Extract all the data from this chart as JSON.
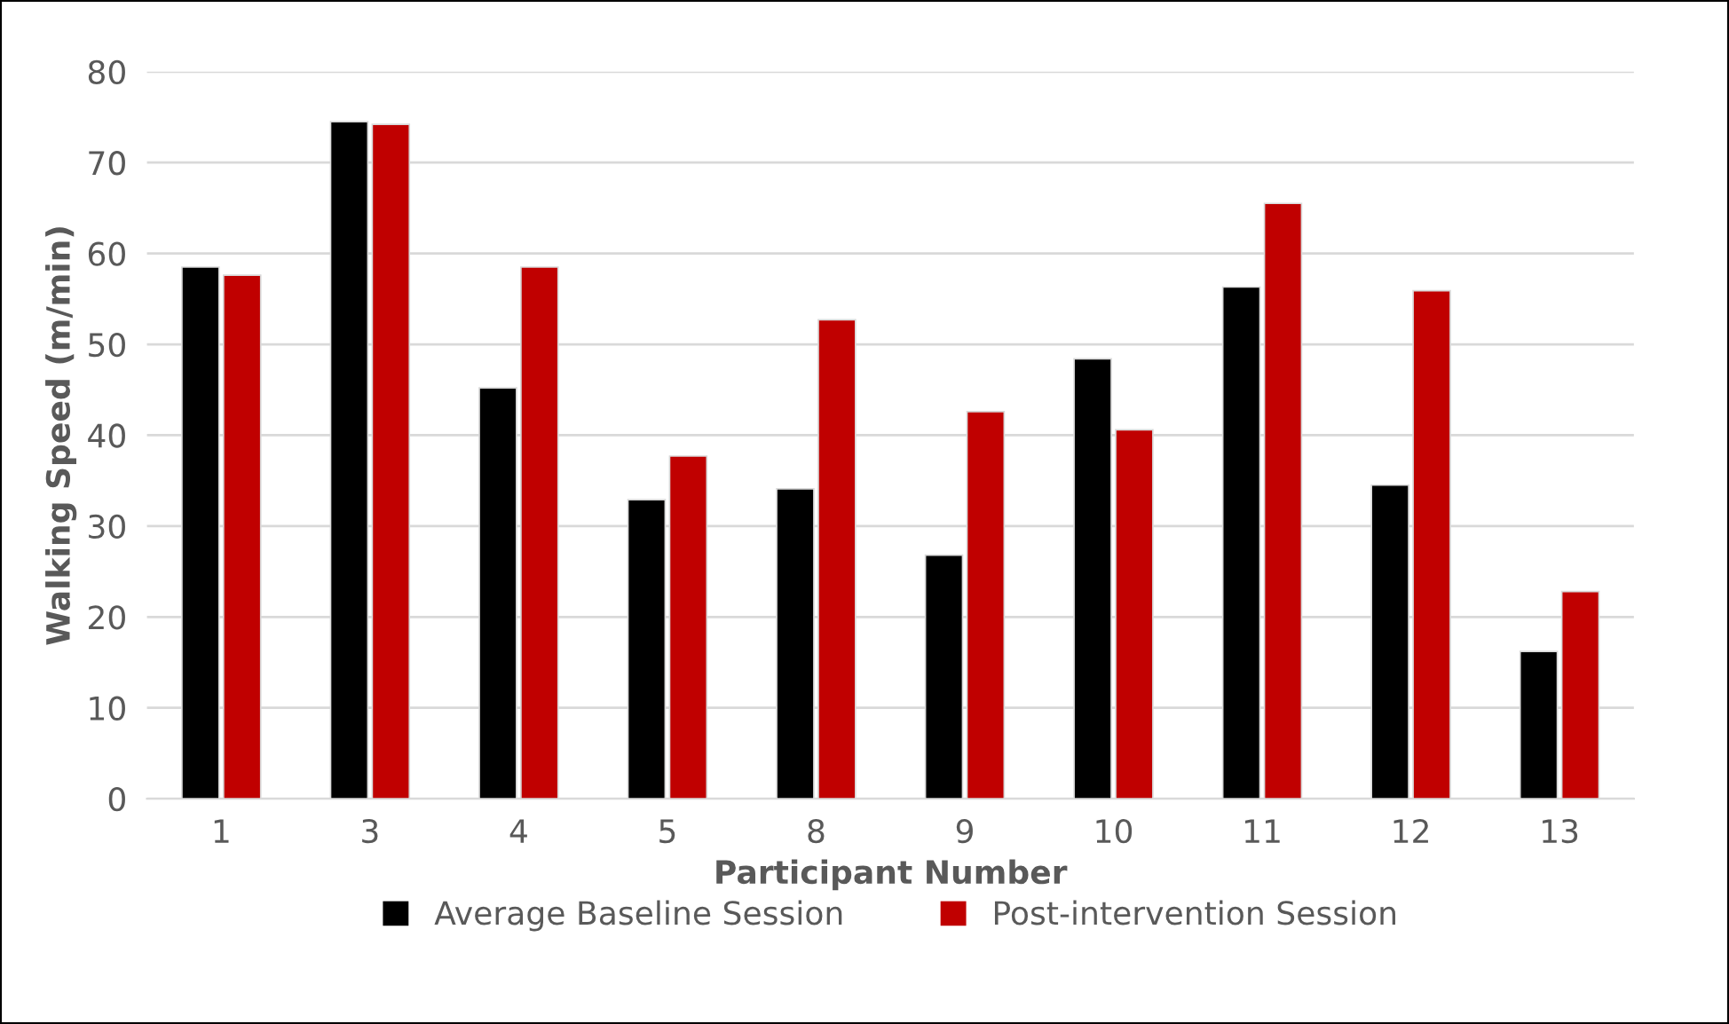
{
  "chart_data": {
    "type": "bar",
    "xlabel": "Participant Number",
    "ylabel": "Walking Speed (m/min)",
    "categories": [
      "1",
      "3",
      "4",
      "5",
      "8",
      "9",
      "10",
      "11",
      "12",
      "13"
    ],
    "series": [
      {
        "name": "Average Baseline Session",
        "color": "#000000",
        "values": [
          58.5,
          74.5,
          45.2,
          32.9,
          34.1,
          26.8,
          48.4,
          56.3,
          34.5,
          16.2
        ]
      },
      {
        "name": "Post-intervention Session",
        "color": "#c00000",
        "values": [
          57.6,
          74.2,
          58.5,
          37.7,
          52.7,
          42.6,
          40.6,
          65.5,
          55.9,
          22.8
        ]
      }
    ],
    "ylim": [
      0,
      80
    ],
    "yticks": [
      0,
      10,
      20,
      30,
      40,
      50,
      60,
      70,
      80
    ],
    "grid": "y",
    "legend": "bottom"
  }
}
